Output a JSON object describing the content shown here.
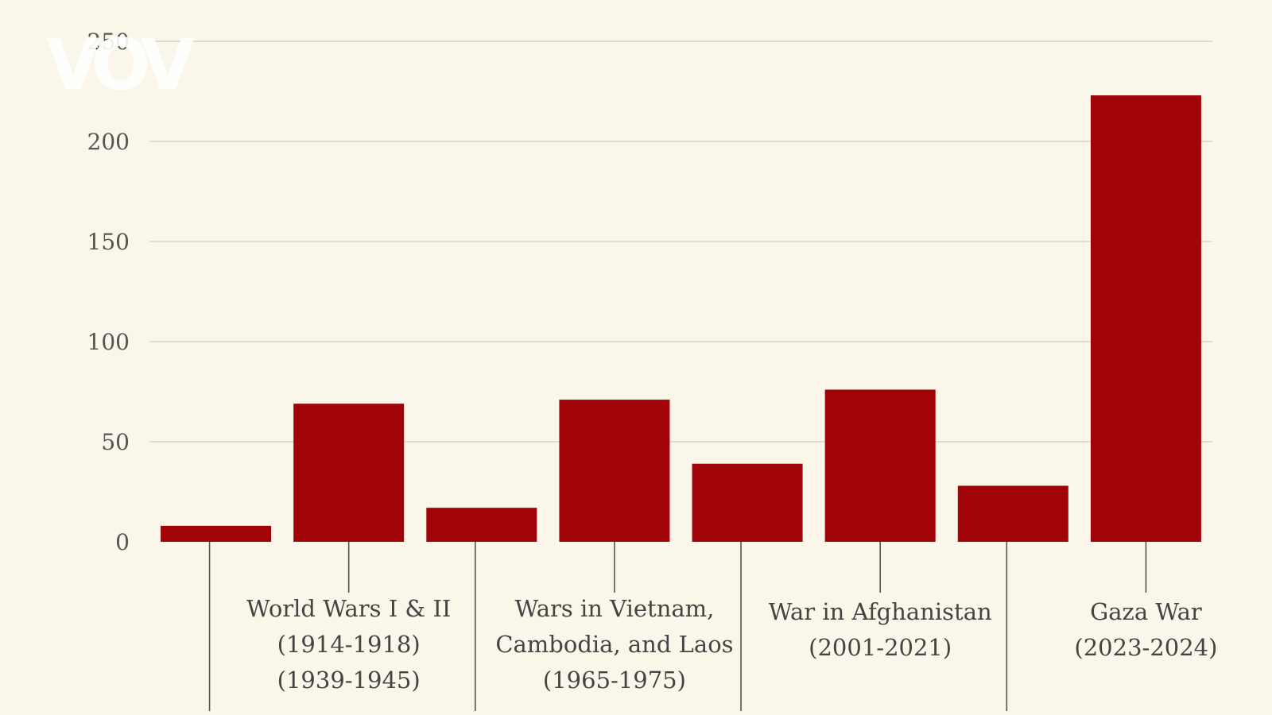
{
  "logo": {
    "text": "VOV"
  },
  "chart_data": {
    "type": "bar",
    "title": "",
    "xlabel": "",
    "ylabel": "",
    "ylim": [
      0,
      250
    ],
    "yticks": [
      0,
      50,
      100,
      150,
      200,
      250
    ],
    "grid": true,
    "bar_color": "#a00408",
    "values": [
      8,
      69,
      17,
      71,
      39,
      76,
      28,
      223
    ],
    "categories": [
      {
        "lines": []
      },
      {
        "lines": [
          "World Wars I & II",
          "(1914-1918)",
          "(1939-1945)"
        ]
      },
      {
        "lines": []
      },
      {
        "lines": [
          "Wars in Vietnam,",
          "Cambodia, and Laos",
          "(1965-1975)"
        ]
      },
      {
        "lines": []
      },
      {
        "lines": [
          "War in Afghanistan",
          "(2001-2021)"
        ]
      },
      {
        "lines": []
      },
      {
        "lines": [
          "Gaza War",
          "(2023-2024)"
        ]
      }
    ]
  }
}
